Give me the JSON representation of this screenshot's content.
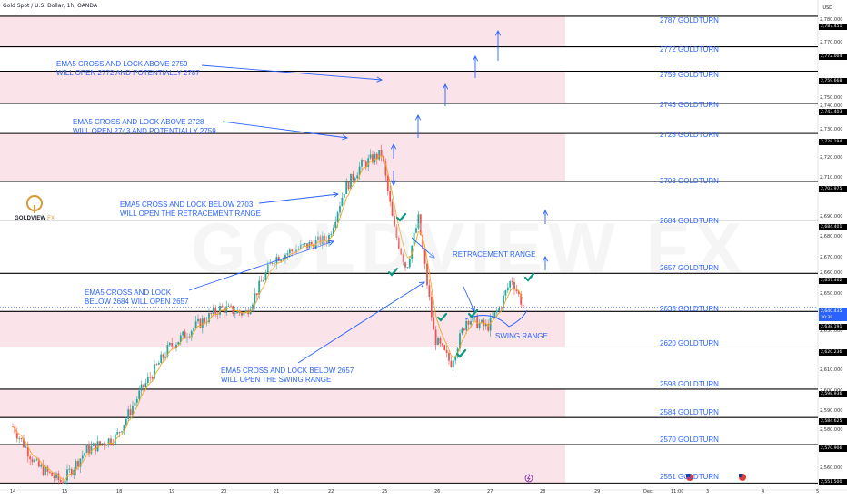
{
  "header": {
    "title": "Gold Spot / U.S. Dollar, 1h, OANDA",
    "currency": "USD"
  },
  "logo": {
    "brand": "GOLDVIEW",
    "suffix": "FX"
  },
  "watermark": "GOLDVIEW FX",
  "colors": {
    "zone": "#fbe3ea",
    "line": "#000000",
    "text_blue": "#2962ff",
    "candle_up": "#26a69a",
    "candle_down": "#ef5350",
    "ema": "#f5a623",
    "check": "#089981",
    "last_price": "#2962ff"
  },
  "goldturns": [
    {
      "label": "2787 GOLDTURN"
    },
    {
      "label": "2772 GOLDTURN"
    },
    {
      "label": "2759 GOLDTURN"
    },
    {
      "label": "2743 GOLDTURN"
    },
    {
      "label": "2728 GOLDTURN"
    },
    {
      "label": "2703 GOLDTURN"
    },
    {
      "label": "2684 GOLDTURN"
    },
    {
      "label": "2657 GOLDTURN"
    },
    {
      "label": "2638 GOLDTURN"
    },
    {
      "label": "2620 GOLDTURN"
    },
    {
      "label": "2598 GOLDTURN"
    },
    {
      "label": "2584 GOLDTURN"
    },
    {
      "label": "2570 GOLDTURN"
    },
    {
      "label": "2551 GOLDTURN"
    }
  ],
  "annotations": [
    {
      "text": "EMA5 CROSS AND LOCK ABOVE 2759\nWILL OPEN 2772 AND POTENTIALLY 2787"
    },
    {
      "text": "EMA5 CROSS AND LOCK ABOVE 2728\nWILL OPEN 2743 AND POTENTIALLY 2759"
    },
    {
      "text": "EMA5 CROSS AND LOCK BELOW 2703\nWILL OPEN THE RETRACEMENT RANGE"
    },
    {
      "text": "EMA5 CROSS AND LOCK\nBELOW 2684 WILL OPEN 2657"
    },
    {
      "text": "EMA5 CROSS AND LOCK BELOW 2657\nWILL OPEN THE SWING RANGE"
    },
    {
      "text": "RETRACEMENT RANGE"
    },
    {
      "text": "SWING RANGE"
    }
  ],
  "axis_labels": {
    "y_ticks": [
      "2,780.000",
      "2,770.000",
      "2,750.000",
      "2,740.000",
      "2,730.000",
      "2,720.000",
      "2,710.000",
      "2,690.000",
      "2,680.000",
      "2,670.000",
      "2,660.000",
      "2,650.000",
      "2,630.000",
      "2,610.000",
      "2,600.000",
      "2,590.000",
      "2,580.000",
      "2,560.000"
    ],
    "level_tags": [
      "2,787.451",
      "2,772.004",
      "2,759.668",
      "2,743.403",
      "2,728.194",
      "2,703.975",
      "2,684.401",
      "2,657.462",
      "2,638.191",
      "2,620.236",
      "2,598.936",
      "2,584.625",
      "2,570.906",
      "2,551.500"
    ],
    "last_price": "2,640.435",
    "countdown": "30:39",
    "x_ticks": [
      "14",
      "15",
      "18",
      "19",
      "20",
      "21",
      "22",
      "25",
      "26",
      "27",
      "28",
      "29",
      "Dec",
      "11:00",
      "3",
      "4",
      "5"
    ]
  },
  "chart_data": {
    "type": "candlestick",
    "title": "Gold Spot / U.S. Dollar, 1h, OANDA",
    "ylabel": "USD",
    "ylim": [
      2548,
      2792
    ],
    "horizontal_levels": [
      2787.451,
      2772.004,
      2759.668,
      2743.403,
      2728.194,
      2703.975,
      2684.401,
      2657.462,
      2638.191,
      2620.236,
      2598.936,
      2584.625,
      2570.906,
      2551.5
    ],
    "zones": [
      [
        2772.004,
        2787.451
      ],
      [
        2743.403,
        2759.668
      ],
      [
        2703.975,
        2728.194
      ],
      [
        2620.236,
        2638.191
      ],
      [
        2584.625,
        2598.936
      ],
      [
        2551.5,
        2570.906
      ]
    ],
    "last_price": 2640.435,
    "price_path": [
      {
        "x": "Nov 14",
        "y": 2580
      },
      {
        "x": "Nov 14",
        "y": 2560
      },
      {
        "x": "Nov 15",
        "y": 2552
      },
      {
        "x": "Nov 15",
        "y": 2568
      },
      {
        "x": "Nov 18",
        "y": 2575
      },
      {
        "x": "Nov 18",
        "y": 2598
      },
      {
        "x": "Nov 19",
        "y": 2620
      },
      {
        "x": "Nov 19",
        "y": 2630
      },
      {
        "x": "Nov 20",
        "y": 2640
      },
      {
        "x": "Nov 20",
        "y": 2637
      },
      {
        "x": "Nov 21",
        "y": 2665
      },
      {
        "x": "Nov 21",
        "y": 2670
      },
      {
        "x": "Nov 22",
        "y": 2675
      },
      {
        "x": "Nov 22",
        "y": 2700
      },
      {
        "x": "Nov 22",
        "y": 2712
      },
      {
        "x": "Nov 25",
        "y": 2718
      },
      {
        "x": "Nov 25",
        "y": 2680
      },
      {
        "x": "Nov 25",
        "y": 2660
      },
      {
        "x": "Nov 25",
        "y": 2685
      },
      {
        "x": "Nov 26",
        "y": 2625
      },
      {
        "x": "Nov 26",
        "y": 2612
      },
      {
        "x": "Nov 26",
        "y": 2635
      },
      {
        "x": "Nov 27",
        "y": 2630
      },
      {
        "x": "Nov 27",
        "y": 2640
      },
      {
        "x": "Nov 27",
        "y": 2655
      },
      {
        "x": "Nov 27",
        "y": 2640
      }
    ]
  }
}
